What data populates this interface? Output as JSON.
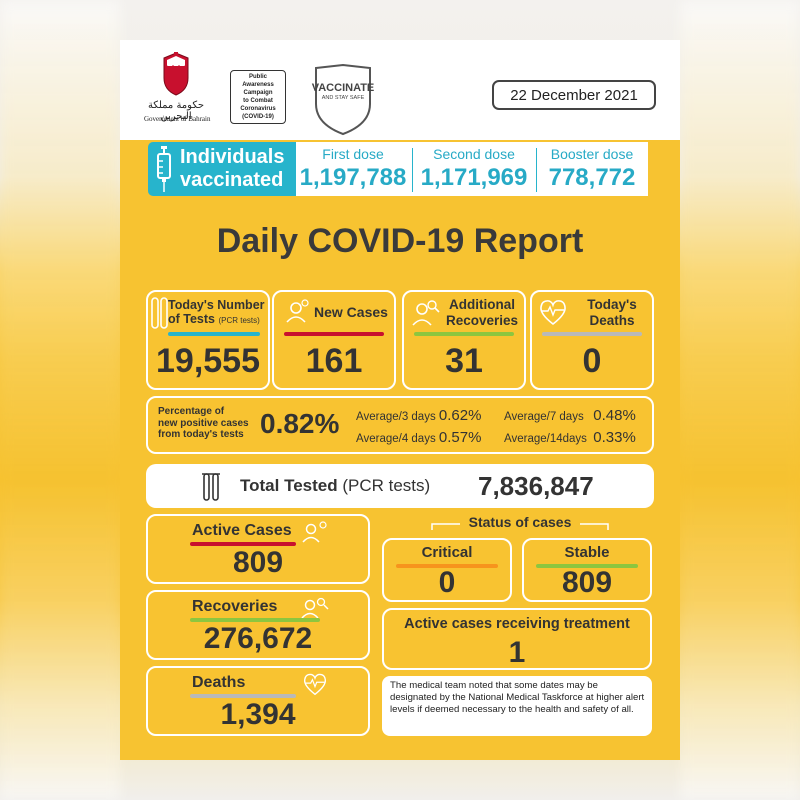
{
  "header": {
    "government_arabic": "حكومة مملكة البحرين",
    "government_english": "Government of Bahrain",
    "campaign_lines": [
      "Public Awareness",
      "Campaign",
      "to Combat",
      "Coronavirus",
      "(COVID-19)"
    ],
    "vaccinate_title": "VACCINATE",
    "vaccinate_sub": "AND STAY SAFE",
    "date": "22 December 2021"
  },
  "vaccination": {
    "title_line1": "Individuals",
    "title_line2": "vaccinated",
    "doses": [
      {
        "label": "First dose",
        "value": "1,197,788"
      },
      {
        "label": "Second dose",
        "value": "1,171,969"
      },
      {
        "label": "Booster dose",
        "value": "778,772"
      }
    ]
  },
  "report_title": "Daily COVID-19 Report",
  "daily": {
    "tests": {
      "label_line1": "Today's Number",
      "label_line2": "of Tests",
      "label_small": "(PCR tests)",
      "value": "19,555"
    },
    "new_cases": {
      "label": "New Cases",
      "value": "161"
    },
    "recoveries": {
      "label_line1": "Additional",
      "label_line2": "Recoveries",
      "value": "31"
    },
    "deaths": {
      "label_line1": "Today's",
      "label_line2": "Deaths",
      "value": "0"
    }
  },
  "positivity": {
    "label_lines": [
      "Percentage of",
      "new positive cases",
      "from today's tests"
    ],
    "value": "0.82%",
    "averages": [
      {
        "label": "Average/3 days",
        "value": "0.62%"
      },
      {
        "label": "Average/7 days",
        "value": "0.48%"
      },
      {
        "label": "Average/4 days",
        "value": "0.57%"
      },
      {
        "label": "Average/14days",
        "value": "0.33%"
      }
    ]
  },
  "total_tested": {
    "label": "Total Tested",
    "label_small": "(PCR tests)",
    "value": "7,836,847"
  },
  "cumulative": {
    "active": {
      "label": "Active Cases",
      "value": "809"
    },
    "recoveries": {
      "label": "Recoveries",
      "value": "276,672"
    },
    "deaths": {
      "label": "Deaths",
      "value": "1,394"
    }
  },
  "status": {
    "title": "Status of cases",
    "critical": {
      "label": "Critical",
      "value": "0"
    },
    "stable": {
      "label": "Stable",
      "value": "809"
    },
    "treatment": {
      "label": "Active cases receiving treatment",
      "value": "1"
    }
  },
  "note": "The medical team noted that some dates may be designated by the National Medical Taskforce at higher alert levels if deemed necessary to the health and safety of all.",
  "colors": {
    "background_yellow": "#f7c331",
    "accent_teal": "#27b4cc",
    "bar_teal": "#27b4cc",
    "bar_red": "#c8102e",
    "bar_green": "#8dc63f",
    "bar_gray": "#b9b9b9",
    "bar_orange": "#f7941d",
    "text_dark": "#333333"
  },
  "icons": [
    "test-tubes-icon",
    "person-virus-icon",
    "person-search-icon",
    "heart-pulse-icon",
    "syringe-icon",
    "emblem-icon",
    "shield-icon"
  ]
}
